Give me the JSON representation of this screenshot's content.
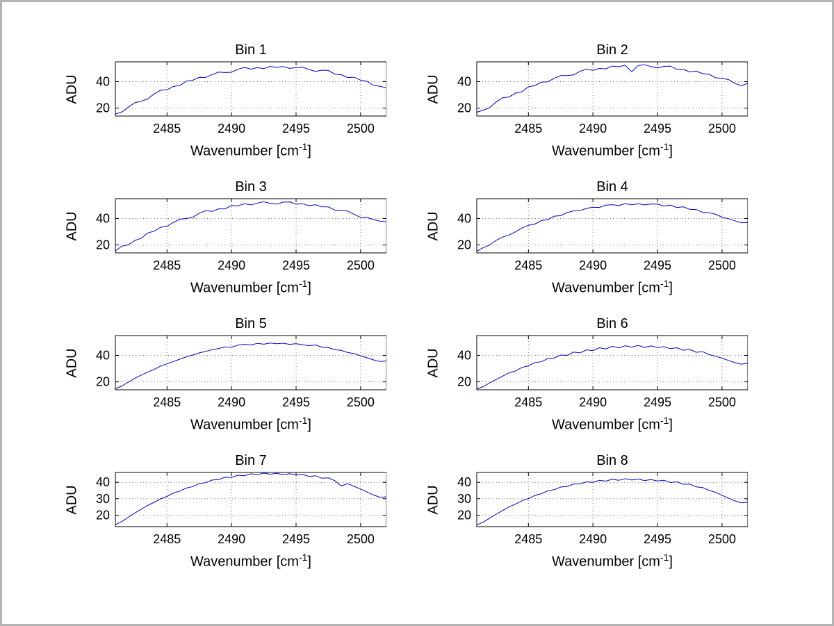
{
  "labels": {
    "ylabel": "ADU",
    "xlabel_main": "Wavenumber [cm",
    "xlabel_sup": "-1",
    "xlabel_close": "]"
  },
  "style": {
    "line_color": "#0000b4",
    "grid_color": "#7f7f7f",
    "axis_color": "#000000",
    "background": "#ffffff"
  },
  "wavenumber_x": [
    2481,
    2481.5,
    2482,
    2482.5,
    2483,
    2483.5,
    2484,
    2484.5,
    2485,
    2485.5,
    2486,
    2486.5,
    2487,
    2487.5,
    2488,
    2488.5,
    2489,
    2489.5,
    2490,
    2490.5,
    2491,
    2491.5,
    2492,
    2492.5,
    2493,
    2493.5,
    2494,
    2494.5,
    2495,
    2495.5,
    2496,
    2496.5,
    2497,
    2497.5,
    2498,
    2498.5,
    2499,
    2499.5,
    2500,
    2500.5,
    2501,
    2501.5,
    2502
  ],
  "chart_data": [
    {
      "type": "line",
      "title": "Bin 1",
      "xlabel": "Wavenumber [cm^-1]",
      "ylabel": "ADU",
      "xlim": [
        2481,
        2502
      ],
      "ylim": [
        14,
        55
      ],
      "xticks": [
        2485,
        2490,
        2495,
        2500
      ],
      "yticks": [
        20,
        40
      ],
      "grid": true,
      "y": [
        15.6,
        17.0,
        20.7,
        24.0,
        25.2,
        26.9,
        30.7,
        33.5,
        33.8,
        36.4,
        37.1,
        40.4,
        41.1,
        43.3,
        43.2,
        45.4,
        47.2,
        46.9,
        47.1,
        49.4,
        50.8,
        49.5,
        50.6,
        49.9,
        51.6,
        50.8,
        51.5,
        50.0,
        50.7,
        51.0,
        49.2,
        47.8,
        48.7,
        48.5,
        45.7,
        45.3,
        43.1,
        43.4,
        41.1,
        40.3,
        37.2,
        36.5,
        35.3
      ]
    },
    {
      "type": "line",
      "title": "Bin 2",
      "xlabel": "Wavenumber [cm^-1]",
      "ylabel": "ADU",
      "xlim": [
        2481,
        2502
      ],
      "ylim": [
        14,
        55
      ],
      "xticks": [
        2485,
        2490,
        2495,
        2500
      ],
      "yticks": [
        20,
        40
      ],
      "grid": true,
      "y": [
        16.9,
        18.4,
        20.4,
        24.6,
        27.8,
        28.4,
        31.3,
        32.4,
        36.1,
        37.1,
        39.6,
        39.9,
        42.5,
        44.6,
        44.6,
        45.1,
        47.8,
        49.5,
        48.6,
        50.0,
        49.7,
        51.8,
        51.3,
        52.4,
        47.5,
        52.2,
        52.8,
        51.4,
        50.4,
        51.6,
        51.8,
        49.3,
        49.3,
        47.4,
        48.0,
        46.0,
        45.6,
        42.9,
        42.5,
        41.6,
        38.6,
        37.0,
        38.8
      ]
    },
    {
      "type": "line",
      "title": "Bin 3",
      "xlabel": "Wavenumber [cm^-1]",
      "ylabel": "ADU",
      "xlim": [
        2481,
        2502
      ],
      "ylim": [
        14,
        55
      ],
      "xticks": [
        2485,
        2490,
        2495,
        2500
      ],
      "yticks": [
        20,
        40
      ],
      "grid": true,
      "y": [
        15.5,
        19.1,
        20.1,
        23.4,
        25.0,
        29.1,
        30.4,
        33.4,
        34.1,
        37.1,
        39.5,
        40.0,
        40.9,
        44.0,
        46.0,
        45.4,
        47.3,
        47.3,
        49.8,
        49.6,
        51.2,
        50.3,
        51.7,
        52.7,
        51.5,
        50.9,
        52.4,
        52.6,
        50.9,
        51.2,
        49.7,
        50.5,
        48.9,
        48.8,
        46.4,
        46.2,
        45.7,
        43.1,
        40.9,
        40.9,
        39.2,
        38.0,
        37.5
      ]
    },
    {
      "type": "line",
      "title": "Bin 4",
      "xlabel": "Wavenumber [cm^-1]",
      "ylabel": "ADU",
      "xlim": [
        2481,
        2502
      ],
      "ylim": [
        14,
        55
      ],
      "xticks": [
        2485,
        2490,
        2495,
        2500
      ],
      "yticks": [
        20,
        40
      ],
      "grid": true,
      "y": [
        15.2,
        18.0,
        20.0,
        23.5,
        26.0,
        27.5,
        30.0,
        32.8,
        34.9,
        35.8,
        38.5,
        39.2,
        41.8,
        42.2,
        44.5,
        45.8,
        45.9,
        47.7,
        48.6,
        48.4,
        50.1,
        50.5,
        49.8,
        51.3,
        50.4,
        51.2,
        50.3,
        51.0,
        50.9,
        49.5,
        50.2,
        48.3,
        48.9,
        47.0,
        46.8,
        44.7,
        44.4,
        43.2,
        41.0,
        39.9,
        38.3,
        36.8,
        36.9
      ]
    },
    {
      "type": "line",
      "title": "Bin 5",
      "xlabel": "Wavenumber [cm^-1]",
      "ylabel": "ADU",
      "xlim": [
        2481,
        2502
      ],
      "ylim": [
        14,
        55
      ],
      "xticks": [
        2485,
        2490,
        2495,
        2500
      ],
      "yticks": [
        20,
        40
      ],
      "grid": true,
      "y": [
        14.8,
        16.9,
        19.8,
        22.6,
        25.1,
        27.3,
        29.4,
        31.9,
        33.6,
        35.4,
        37.2,
        38.9,
        40.3,
        41.9,
        43.0,
        44.4,
        45.2,
        46.4,
        46.1,
        47.8,
        48.4,
        47.9,
        49.1,
        48.5,
        49.4,
        48.8,
        49.2,
        48.4,
        48.9,
        48.0,
        47.4,
        47.9,
        46.2,
        45.9,
        44.3,
        43.8,
        42.2,
        41.4,
        39.7,
        38.2,
        36.6,
        35.4,
        35.8
      ]
    },
    {
      "type": "line",
      "title": "Bin 6",
      "xlabel": "Wavenumber [cm^-1]",
      "ylabel": "ADU",
      "xlim": [
        2481,
        2502
      ],
      "ylim": [
        14,
        55
      ],
      "xticks": [
        2485,
        2490,
        2495,
        2500
      ],
      "yticks": [
        20,
        40
      ],
      "grid": true,
      "y": [
        14.5,
        16.4,
        19.2,
        21.8,
        24.3,
        26.8,
        28.2,
        30.9,
        32.1,
        34.6,
        35.2,
        37.6,
        38.1,
        40.3,
        40.0,
        42.5,
        41.9,
        44.2,
        43.6,
        45.8,
        44.9,
        46.9,
        45.7,
        47.3,
        46.2,
        47.6,
        46.0,
        47.2,
        45.9,
        46.6,
        45.1,
        45.8,
        43.9,
        44.5,
        42.4,
        42.8,
        40.6,
        39.4,
        37.9,
        36.2,
        34.5,
        33.4,
        34.1
      ]
    },
    {
      "type": "line",
      "title": "Bin 7",
      "xlabel": "Wavenumber [cm^-1]",
      "ylabel": "ADU",
      "xlim": [
        2481,
        2502
      ],
      "ylim": [
        13,
        46
      ],
      "xticks": [
        2485,
        2490,
        2495,
        2500
      ],
      "yticks": [
        20,
        30,
        40
      ],
      "grid": true,
      "y": [
        14.2,
        16.1,
        18.7,
        21.3,
        23.6,
        25.9,
        27.8,
        29.9,
        31.4,
        33.5,
        34.7,
        36.5,
        37.4,
        39.2,
        39.8,
        41.4,
        41.7,
        43.1,
        43.0,
        44.3,
        44.0,
        45.2,
        44.6,
        45.6,
        44.9,
        45.5,
        44.7,
        45.3,
        44.4,
        44.9,
        43.6,
        44.0,
        42.5,
        42.7,
        41.0,
        37.8,
        39.2,
        37.5,
        35.9,
        34.1,
        32.3,
        30.9,
        31.2
      ]
    },
    {
      "type": "line",
      "title": "Bin 8",
      "xlabel": "Wavenumber [cm^-1]",
      "ylabel": "ADU",
      "xlim": [
        2481,
        2502
      ],
      "ylim": [
        13,
        46
      ],
      "xticks": [
        2485,
        2490,
        2495,
        2500
      ],
      "yticks": [
        20,
        30,
        40
      ],
      "grid": true,
      "y": [
        14.0,
        15.8,
        18.2,
        20.6,
        22.8,
        25.0,
        26.7,
        28.8,
        30.1,
        32.0,
        33.1,
        34.8,
        35.5,
        37.1,
        37.5,
        38.9,
        39.0,
        40.3,
        40.0,
        41.2,
        40.7,
        41.9,
        41.2,
        42.2,
        41.4,
        42.0,
        41.1,
        41.7,
        40.8,
        41.2,
        39.9,
        40.3,
        38.8,
        38.9,
        37.2,
        36.8,
        35.1,
        33.9,
        32.1,
        30.4,
        28.7,
        27.5,
        27.9
      ]
    }
  ]
}
